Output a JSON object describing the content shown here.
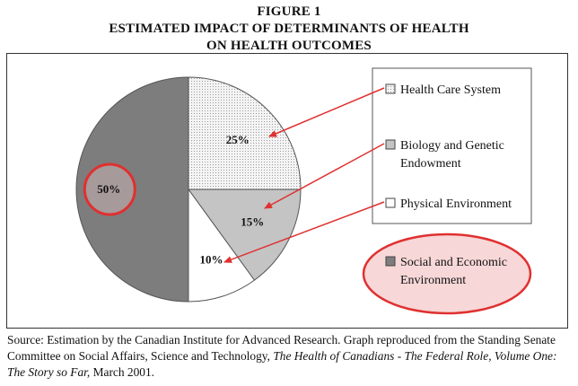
{
  "figure": {
    "label": "FIGURE 1",
    "title_line1": "ESTIMATED IMPACT OF DETERMINANTS OF HEALTH",
    "title_line2": "ON HEALTH OUTCOMES"
  },
  "chart_data": {
    "type": "pie",
    "slices": [
      {
        "label": "Health Care System",
        "value": 25,
        "value_label": "25%",
        "fill": "#ededed",
        "pattern": "dotted"
      },
      {
        "label": "Biology and Genetic Endowment",
        "value": 15,
        "value_label": "15%",
        "fill": "#c4c4c4",
        "pattern": "solid"
      },
      {
        "label": "Physical Environment",
        "value": 10,
        "value_label": "10%",
        "fill": "#ffffff",
        "pattern": "solid"
      },
      {
        "label": "Social and Economic Environment",
        "value": 50,
        "value_label": "50%",
        "fill": "#7d7d7d",
        "pattern": "solid"
      }
    ],
    "legend": {
      "placement": "right",
      "entries": [
        {
          "line1": "Health Care System",
          "line2": ""
        },
        {
          "line1": "Biology and Genetic",
          "line2": "Endowment"
        },
        {
          "line1": "Physical Environment",
          "line2": ""
        },
        {
          "line1": "Social and Economic",
          "line2": "Environment"
        }
      ]
    },
    "highlight_color": "#e03030",
    "highlight_fill": "#f6d0d0",
    "arrow_color": "#e03030"
  },
  "source": {
    "part1": "Source: Estimation by the Canadian Institute for Advanced Research. Graph reproduced from the Standing Senate Committee on Social Affairs, Science and Technology, ",
    "italic1": "The Health of Canadians - The Federal Role, Volume One: The Story so Far,",
    "part2": " March 2001."
  }
}
